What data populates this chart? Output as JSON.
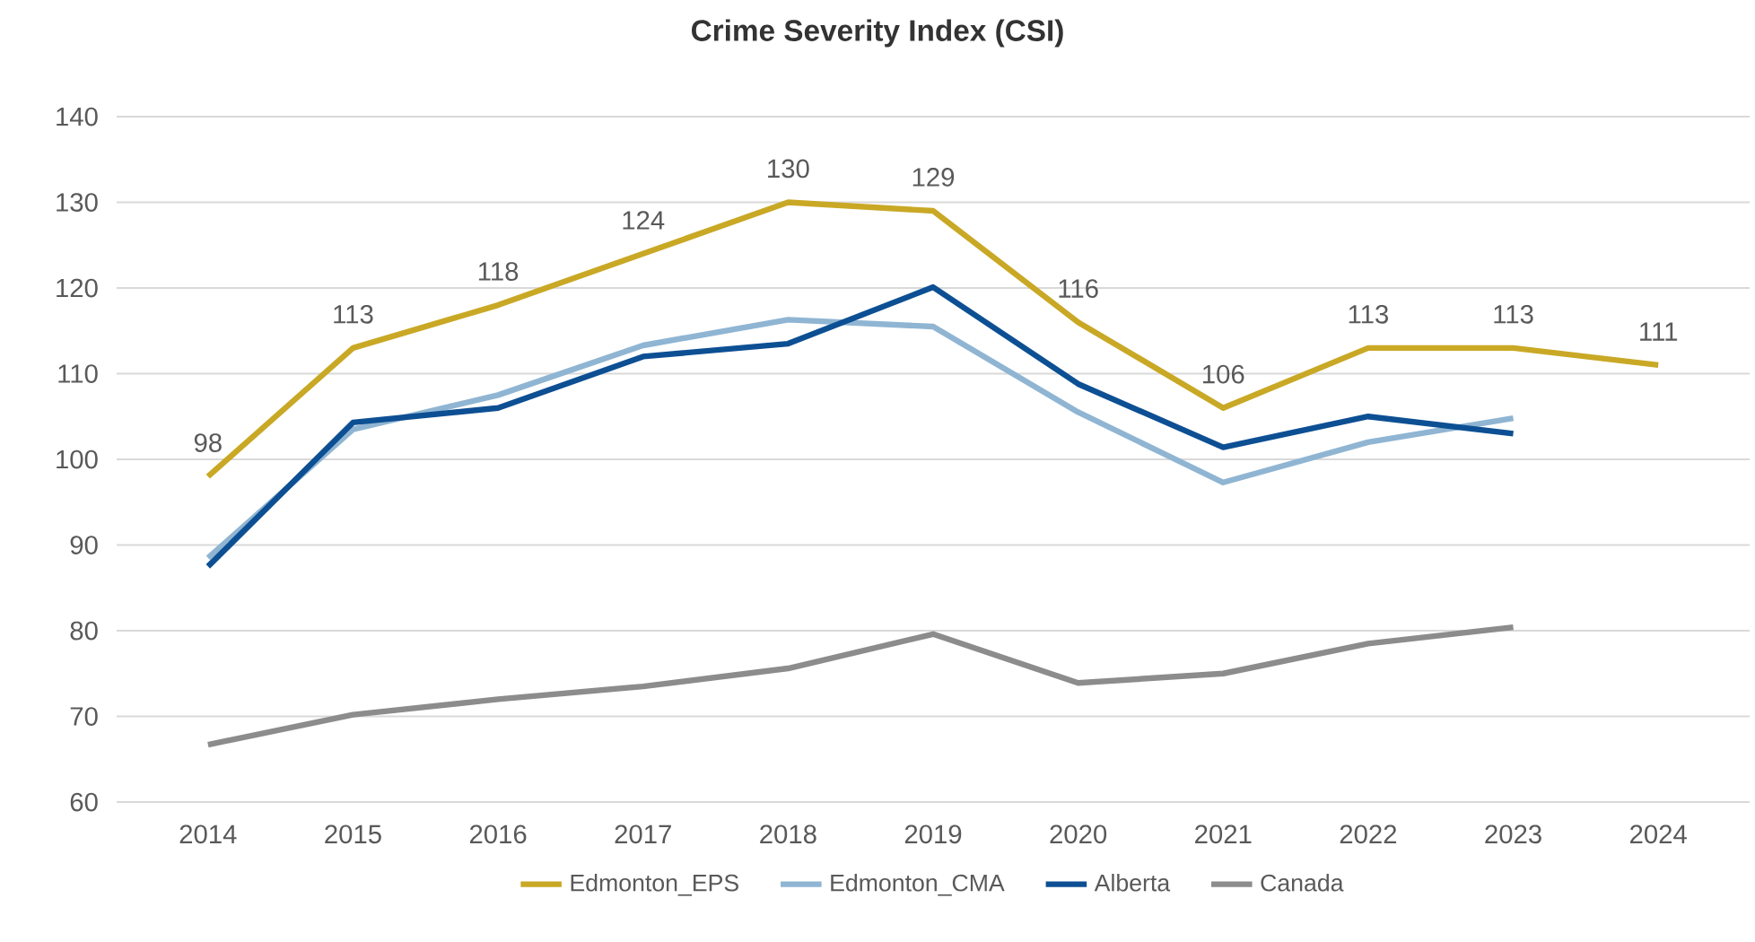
{
  "chart_data": {
    "type": "line",
    "title": "Crime Severity Index (CSI)",
    "categories": [
      "2014",
      "2015",
      "2016",
      "2017",
      "2018",
      "2019",
      "2020",
      "2021",
      "2022",
      "2023",
      "2024"
    ],
    "series": [
      {
        "name": "Edmonton_EPS",
        "color": "#c9a825",
        "values": [
          98,
          113,
          118,
          124,
          130,
          129,
          116,
          106,
          113,
          113,
          111
        ],
        "value_labels": [
          "98",
          "113",
          "118",
          "124",
          "130",
          "129",
          "116",
          "106",
          "113",
          "113",
          "111"
        ]
      },
      {
        "name": "Edmonton_CMA",
        "color": "#8fb5d3",
        "values": [
          88.5,
          103.5,
          107.5,
          113.3,
          116.3,
          115.5,
          105.5,
          97.3,
          102,
          104.8,
          null
        ]
      },
      {
        "name": "Alberta",
        "color": "#0d4f93",
        "values": [
          87.5,
          104.3,
          106,
          112,
          113.5,
          120.1,
          108.8,
          101.4,
          105,
          103,
          null
        ]
      },
      {
        "name": "Canada",
        "color": "#8c8c8c",
        "values": [
          66.7,
          70.2,
          72,
          73.5,
          75.6,
          79.6,
          73.9,
          75,
          78.5,
          80.4,
          null
        ]
      }
    ],
    "ylim": [
      60,
      140
    ],
    "yticks": [
      60,
      70,
      80,
      90,
      100,
      110,
      120,
      130,
      140
    ],
    "grid": "y",
    "legend": "bottom"
  }
}
